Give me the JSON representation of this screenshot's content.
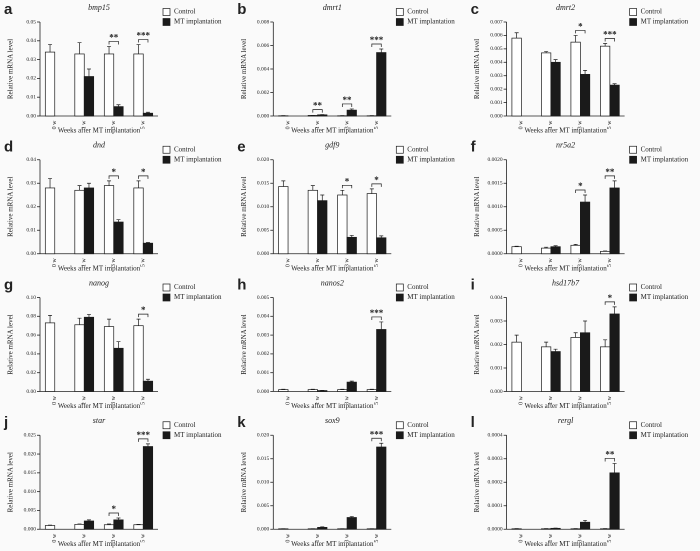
{
  "chart_data": [
    {
      "type": "bar",
      "panel": "a",
      "title": "bmp15",
      "ylabel": "Relative mRNA level",
      "xlabel": "Weeks after MT implantation",
      "categories": [
        "0 w",
        "1 w",
        "3 w",
        "5 w"
      ],
      "series": [
        {
          "name": "Control",
          "color": "#ffffff",
          "values": [
            0.034,
            0.033,
            0.033,
            0.033
          ],
          "errors": [
            0.004,
            0.006,
            0.004,
            0.005
          ]
        },
        {
          "name": "MT implantation",
          "color": "#1a1a1a",
          "values": [
            null,
            0.021,
            0.005,
            0.0015
          ],
          "errors": [
            null,
            0.004,
            0.001,
            0.0005
          ]
        }
      ],
      "significance": [
        null,
        null,
        "**",
        "***"
      ],
      "ylim": [
        0,
        0.05
      ],
      "yticks": [
        {
          "value": 0,
          "label": "0.00"
        },
        0.01,
        0.02,
        0.03,
        0.04,
        0.05
      ]
    },
    {
      "type": "bar",
      "panel": "b",
      "title": "dmrt1",
      "ylabel": "Relative mRNA level",
      "xlabel": "Weeks after MT implantation",
      "categories": [
        "0 w",
        "1 w",
        "3 w",
        "5 w"
      ],
      "series": [
        {
          "name": "Control",
          "color": "#ffffff",
          "values": [
            2e-05,
            5e-05,
            2e-05,
            2e-05
          ],
          "errors": [
            1e-05,
            1e-05,
            1e-05,
            1e-05
          ]
        },
        {
          "name": "MT implantation",
          "color": "#1a1a1a",
          "values": [
            null,
            0.0001,
            0.0005,
            0.0054
          ],
          "errors": [
            null,
            2e-05,
            0.0001,
            0.0003
          ]
        }
      ],
      "significance": [
        null,
        "**",
        "**",
        "***"
      ],
      "ylim": [
        0,
        0.008
      ],
      "yticks": [
        {
          "value": 0,
          "label": "0.000"
        },
        0.002,
        0.004,
        0.006,
        0.008
      ]
    },
    {
      "type": "bar",
      "panel": "c",
      "title": "dmrt2",
      "ylabel": "Relative mRNA level",
      "xlabel": "Weeks after MT implantation",
      "categories": [
        "0 w",
        "1 w",
        "3 w",
        "5 w"
      ],
      "series": [
        {
          "name": "Control",
          "color": "#ffffff",
          "values": [
            0.0058,
            0.0047,
            0.0055,
            0.0052
          ],
          "errors": [
            0.0004,
            0.0001,
            0.0005,
            0.0002
          ]
        },
        {
          "name": "MT implantation",
          "color": "#1a1a1a",
          "values": [
            null,
            0.004,
            0.0031,
            0.0023
          ],
          "errors": [
            null,
            0.0002,
            0.0003,
            0.0001
          ]
        }
      ],
      "significance": [
        null,
        null,
        "*",
        "***"
      ],
      "ylim": [
        0,
        0.007
      ],
      "yticks": [
        {
          "value": 0,
          "label": "0.000"
        },
        0.001,
        0.002,
        0.003,
        0.004,
        0.005,
        0.006,
        0.007
      ]
    },
    {
      "type": "bar",
      "panel": "d",
      "title": "dnd",
      "ylabel": "Relative mRNA level",
      "xlabel": "Weeks after MT implantation",
      "categories": [
        "0 w",
        "1 w",
        "3 w",
        "5 w"
      ],
      "series": [
        {
          "name": "Control",
          "color": "#ffffff",
          "values": [
            0.028,
            0.027,
            0.029,
            0.028
          ],
          "errors": [
            0.004,
            0.002,
            0.002,
            0.003
          ]
        },
        {
          "name": "MT implantation",
          "color": "#1a1a1a",
          "values": [
            null,
            0.028,
            0.0135,
            0.0045
          ],
          "errors": [
            null,
            0.002,
            0.001,
            0.0003
          ]
        }
      ],
      "significance": [
        null,
        null,
        "*",
        "*"
      ],
      "ylim": [
        0,
        0.04
      ],
      "yticks": [
        {
          "value": 0,
          "label": "0.00"
        },
        0.01,
        0.02,
        0.03,
        0.04
      ]
    },
    {
      "type": "bar",
      "panel": "e",
      "title": "gdf9",
      "ylabel": "Relative mRNA level",
      "xlabel": "Weeks after MT implantation",
      "categories": [
        "0 w",
        "1 w",
        "3 w",
        "5 w"
      ],
      "series": [
        {
          "name": "Control",
          "color": "#ffffff",
          "values": [
            0.0143,
            0.0135,
            0.0125,
            0.0128
          ],
          "errors": [
            0.0012,
            0.001,
            0.001,
            0.001
          ]
        },
        {
          "name": "MT implantation",
          "color": "#1a1a1a",
          "values": [
            null,
            0.0113,
            0.0035,
            0.0034
          ],
          "errors": [
            null,
            0.0012,
            0.0004,
            0.0004
          ]
        }
      ],
      "significance": [
        null,
        null,
        "*",
        "*"
      ],
      "ylim": [
        0,
        0.02
      ],
      "yticks": [
        {
          "value": 0,
          "label": "0.000"
        },
        0.005,
        {
          "value": 0.01,
          "label": "0.010"
        },
        0.015,
        {
          "value": 0.02,
          "label": "0.020"
        }
      ]
    },
    {
      "type": "bar",
      "panel": "f",
      "title": "nr5a2",
      "ylabel": "Relative mRNA level",
      "xlabel": "Weeks after MT implantation",
      "categories": [
        "0 w",
        "1 w",
        "3 w",
        "5 w"
      ],
      "series": [
        {
          "name": "Control",
          "color": "#ffffff",
          "values": [
            0.00015,
            0.00012,
            0.00018,
            5e-05
          ],
          "errors": [
            1e-05,
            2e-05,
            2e-05,
            1e-05
          ]
        },
        {
          "name": "MT implantation",
          "color": "#1a1a1a",
          "values": [
            null,
            0.00015,
            0.0011,
            0.0014
          ],
          "errors": [
            null,
            2e-05,
            0.00015,
            0.00015
          ]
        }
      ],
      "significance": [
        null,
        null,
        "*",
        "**"
      ],
      "ylim": [
        0,
        0.002
      ],
      "yticks": [
        {
          "value": 0,
          "label": "0.0000"
        },
        0.0005,
        {
          "value": 0.001,
          "label": "0.0010"
        },
        0.0015,
        {
          "value": 0.002,
          "label": "0.0020"
        }
      ]
    },
    {
      "type": "bar",
      "panel": "g",
      "title": "nanog",
      "ylabel": "Relative mRNA level",
      "xlabel": "Weeks after MT implantation",
      "categories": [
        "0 w",
        "1 w",
        "3 w",
        "5 w"
      ],
      "series": [
        {
          "name": "Control",
          "color": "#ffffff",
          "values": [
            0.073,
            0.071,
            0.069,
            0.07
          ],
          "errors": [
            0.008,
            0.007,
            0.008,
            0.007
          ]
        },
        {
          "name": "MT implantation",
          "color": "#1a1a1a",
          "values": [
            null,
            0.079,
            0.046,
            0.011
          ],
          "errors": [
            null,
            0.003,
            0.007,
            0.002
          ]
        }
      ],
      "significance": [
        null,
        null,
        null,
        "*"
      ],
      "ylim": [
        0,
        0.1
      ],
      "yticks": [
        {
          "value": 0,
          "label": "0.00"
        },
        0.02,
        0.04,
        0.06,
        0.08,
        {
          "value": 0.1,
          "label": "0.10"
        }
      ]
    },
    {
      "type": "bar",
      "panel": "h",
      "title": "nanos2",
      "ylabel": "Relative mRNA level",
      "xlabel": "Weeks after MT implantation",
      "categories": [
        "0 w",
        "1 w",
        "3 w",
        "5 w"
      ],
      "series": [
        {
          "name": "Control",
          "color": "#ffffff",
          "values": [
            0.0001,
            0.0001,
            0.0001,
            0.0001
          ],
          "errors": [
            2e-05,
            2e-05,
            2e-05,
            2e-05
          ]
        },
        {
          "name": "MT implantation",
          "color": "#1a1a1a",
          "values": [
            null,
            5e-05,
            0.0005,
            0.0033
          ],
          "errors": [
            null,
            1e-05,
            5e-05,
            0.0004
          ]
        }
      ],
      "significance": [
        null,
        null,
        null,
        "***"
      ],
      "ylim": [
        0,
        0.005
      ],
      "yticks": [
        {
          "value": 0,
          "label": "0.000"
        },
        0.001,
        0.002,
        0.003,
        0.004,
        0.005
      ]
    },
    {
      "type": "bar",
      "panel": "i",
      "title": "hsd17b7",
      "ylabel": "Relative mRNA level",
      "xlabel": "Weeks after MT implantation",
      "categories": [
        "0 w",
        "1 w",
        "3 w",
        "5 w"
      ],
      "series": [
        {
          "name": "Control",
          "color": "#ffffff",
          "values": [
            0.0021,
            0.0019,
            0.0023,
            0.0019
          ],
          "errors": [
            0.0003,
            0.0002,
            0.0002,
            0.0003
          ]
        },
        {
          "name": "MT implantation",
          "color": "#1a1a1a",
          "values": [
            null,
            0.0017,
            0.0025,
            0.0033
          ],
          "errors": [
            null,
            0.0001,
            0.0005,
            0.0003
          ]
        }
      ],
      "significance": [
        null,
        null,
        null,
        "*"
      ],
      "ylim": [
        0,
        0.004
      ],
      "yticks": [
        {
          "value": 0,
          "label": "0.000"
        },
        0.001,
        0.002,
        0.003,
        0.004
      ]
    },
    {
      "type": "bar",
      "panel": "j",
      "title": "star",
      "ylabel": "Relative mRNA level",
      "xlabel": "Weeks after MT implantation",
      "categories": [
        "0 w",
        "1 w",
        "3 w",
        "5 w"
      ],
      "series": [
        {
          "name": "Control",
          "color": "#ffffff",
          "values": [
            0.001,
            0.0013,
            0.0012,
            0.0012
          ],
          "errors": [
            0.0001,
            0.0001,
            0.0002,
            0.0001
          ]
        },
        {
          "name": "MT implantation",
          "color": "#1a1a1a",
          "values": [
            null,
            0.0022,
            0.0025,
            0.022
          ],
          "errors": [
            null,
            0.0003,
            0.0005,
            0.0007
          ]
        }
      ],
      "significance": [
        null,
        null,
        "*",
        "***"
      ],
      "ylim": [
        0,
        0.025
      ],
      "yticks": [
        {
          "value": 0,
          "label": "0.000"
        },
        0.005,
        {
          "value": 0.01,
          "label": "0.010"
        },
        0.015,
        {
          "value": 0.02,
          "label": "0.020"
        },
        0.025
      ]
    },
    {
      "type": "bar",
      "panel": "k",
      "title": "sox9",
      "ylabel": "Relative mRNA level",
      "xlabel": "Weeks after MT implantation",
      "categories": [
        "0 w",
        "1 w",
        "3 w",
        "5 w"
      ],
      "series": [
        {
          "name": "Control",
          "color": "#ffffff",
          "values": [
            0.0001,
            0.0001,
            0.0001,
            0.0001
          ],
          "errors": [
            2e-05,
            2e-05,
            2e-05,
            2e-05
          ]
        },
        {
          "name": "MT implantation",
          "color": "#1a1a1a",
          "values": [
            null,
            0.0004,
            0.0025,
            0.0175
          ],
          "errors": [
            null,
            0.0001,
            0.0002,
            0.0008
          ]
        }
      ],
      "significance": [
        null,
        null,
        null,
        "***"
      ],
      "ylim": [
        0,
        0.02
      ],
      "yticks": [
        {
          "value": 0,
          "label": "0.000"
        },
        0.005,
        {
          "value": 0.01,
          "label": "0.010"
        },
        0.015,
        {
          "value": 0.02,
          "label": "0.020"
        }
      ]
    },
    {
      "type": "bar",
      "panel": "l",
      "title": "rergl",
      "ylabel": "Relative mRNA level",
      "xlabel": "Weeks after MT implantation",
      "categories": [
        "0 w",
        "1 w",
        "3 w",
        "5 w"
      ],
      "series": [
        {
          "name": "Control",
          "color": "#ffffff",
          "values": [
            2e-06,
            2e-06,
            2e-06,
            2e-06
          ],
          "errors": [
            1e-06,
            1e-06,
            1e-06,
            1e-06
          ]
        },
        {
          "name": "MT implantation",
          "color": "#1a1a1a",
          "values": [
            null,
            4e-06,
            3e-05,
            0.00024
          ],
          "errors": [
            null,
            1e-06,
            8e-06,
            4e-05
          ]
        }
      ],
      "significance": [
        null,
        null,
        null,
        "**"
      ],
      "ylim": [
        0,
        0.0004
      ],
      "yticks": [
        {
          "value": 0,
          "label": "0.0000"
        },
        0.0001,
        0.0002,
        0.0003,
        0.0004
      ]
    }
  ]
}
